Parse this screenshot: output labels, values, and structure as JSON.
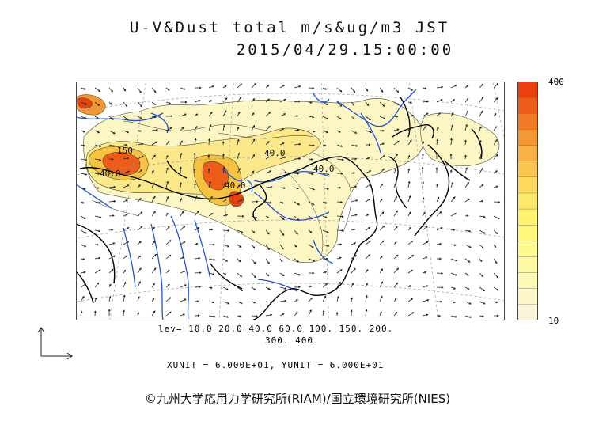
{
  "header": {
    "title": "U-V&Dust total m/s&ug/m3 JST",
    "datetime": "2015/04/29.15:00:00"
  },
  "colorbar": {
    "max_label": "400",
    "min_label": "10",
    "colors": [
      "#e8410f",
      "#ee5c1a",
      "#f27a26",
      "#f59735",
      "#f8b145",
      "#fbc650",
      "#fdd95d",
      "#fee868",
      "#fff36f",
      "#fff77c",
      "#fefa8f",
      "#fdf9a3",
      "#fcf8b6",
      "#fbf6c8",
      "#faf4d8"
    ]
  },
  "map": {
    "contour_labels": [
      "150",
      "40.0",
      "40.0",
      "40.0",
      "40.0"
    ],
    "colors": {
      "coast": "#000000",
      "rivers": "#1e52d8",
      "grid": "#9a9a9a",
      "vectors": "#222222"
    }
  },
  "legend": {
    "lev_line1": "lev= 10.0 20.0 40.0 60.0 100. 150. 200.",
    "lev_line2": "300. 400.",
    "units": "XUNIT = 6.000E+01, YUNIT = 6.000E+01"
  },
  "footer": {
    "credit": "©九州大学応用力学研究所(RIAM)/国立環境研究所(NIES)"
  }
}
